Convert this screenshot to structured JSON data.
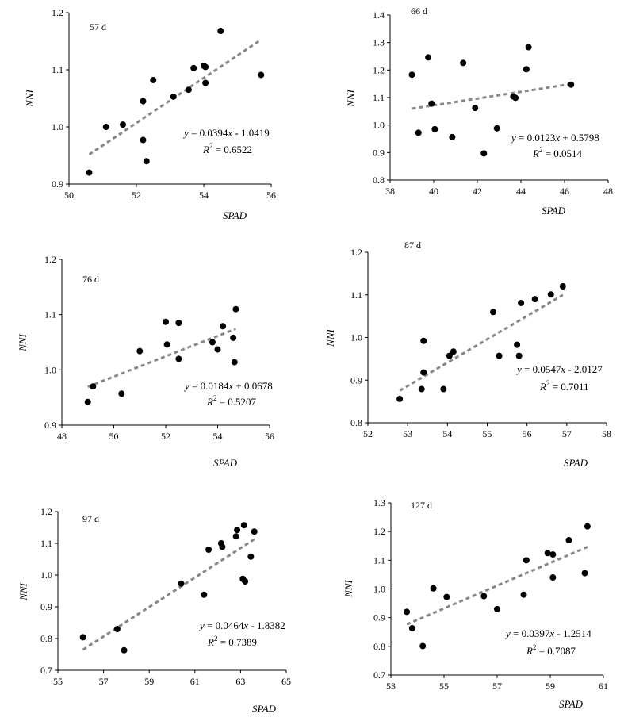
{
  "chart_data": [
    {
      "type": "scatter",
      "title": "57 d",
      "xlabel": "SPAD",
      "ylabel": "NNI",
      "xlim": [
        50,
        56
      ],
      "ylim": [
        0.9,
        1.2
      ],
      "xticks": [
        "50",
        "52",
        "54",
        "56"
      ],
      "yticks": [
        "0.9",
        "1.0",
        "1.1",
        "1.2"
      ],
      "points": [
        [
          50.6,
          0.92
        ],
        [
          51.1,
          1.0
        ],
        [
          51.6,
          1.004
        ],
        [
          52.2,
          0.977
        ],
        [
          52.2,
          1.045
        ],
        [
          52.3,
          0.94
        ],
        [
          52.5,
          1.082
        ],
        [
          53.1,
          1.053
        ],
        [
          53.55,
          1.065
        ],
        [
          53.7,
          1.103
        ],
        [
          54.0,
          1.107
        ],
        [
          54.05,
          1.105
        ],
        [
          54.05,
          1.077
        ],
        [
          54.5,
          1.168
        ],
        [
          55.7,
          1.091
        ]
      ],
      "trendline": {
        "style": "dashed",
        "slope": 0.0394,
        "intercept": -1.0419,
        "x_range": [
          50.6,
          55.7
        ]
      },
      "equation": "y = 0.0394x - 1.0419",
      "r2": "R² = 0.6522"
    },
    {
      "type": "scatter",
      "title": "66 d",
      "xlabel": "SPAD",
      "ylabel": "NNI",
      "xlim": [
        38,
        48
      ],
      "ylim": [
        0.8,
        1.4
      ],
      "xticks": [
        "38",
        "40",
        "42",
        "44",
        "46",
        "48"
      ],
      "yticks": [
        "0.8",
        "0.9",
        "1.0",
        "1.1",
        "1.2",
        "1.3",
        "1.4"
      ],
      "points": [
        [
          39.0,
          1.183
        ],
        [
          39.3,
          0.972
        ],
        [
          39.75,
          1.246
        ],
        [
          39.9,
          1.078
        ],
        [
          40.05,
          0.985
        ],
        [
          40.85,
          0.956
        ],
        [
          41.35,
          1.226
        ],
        [
          41.9,
          1.062
        ],
        [
          42.3,
          0.897
        ],
        [
          42.9,
          0.988
        ],
        [
          43.65,
          1.104
        ],
        [
          43.75,
          1.099
        ],
        [
          44.25,
          1.203
        ],
        [
          44.35,
          1.283
        ],
        [
          46.3,
          1.147
        ]
      ],
      "trendline": {
        "style": "dashed",
        "slope": 0.0123,
        "intercept": 0.5798,
        "x_range": [
          39.0,
          46.3
        ]
      },
      "equation": "y = 0.0123x + 0.5798",
      "r2": "R² = 0.0514"
    },
    {
      "type": "scatter",
      "title": "76 d",
      "xlabel": "SPAD",
      "ylabel": "NNI",
      "xlim": [
        48,
        56
      ],
      "ylim": [
        0.9,
        1.2
      ],
      "xticks": [
        "48",
        "50",
        "52",
        "54",
        "56"
      ],
      "yticks": [
        "0.9",
        "1.0",
        "1.1",
        "1.2"
      ],
      "points": [
        [
          49.0,
          0.942
        ],
        [
          49.2,
          0.97
        ],
        [
          50.3,
          0.957
        ],
        [
          51.0,
          1.034
        ],
        [
          52.0,
          1.087
        ],
        [
          52.05,
          1.046
        ],
        [
          52.5,
          1.085
        ],
        [
          52.5,
          1.02
        ],
        [
          53.8,
          1.05
        ],
        [
          54.0,
          1.037
        ],
        [
          54.2,
          1.079
        ],
        [
          54.6,
          1.058
        ],
        [
          54.65,
          1.014
        ],
        [
          54.7,
          1.11
        ]
      ],
      "trendline": {
        "style": "dashed",
        "slope": 0.0184,
        "intercept": 0.0678,
        "x_range": [
          49.0,
          54.7
        ]
      },
      "equation": "y = 0.0184x + 0.0678",
      "r2": "R² = 0.5207"
    },
    {
      "type": "scatter",
      "title": "87 d",
      "xlabel": "SPAD",
      "ylabel": "NNI",
      "xlim": [
        52,
        58
      ],
      "ylim": [
        0.8,
        1.2
      ],
      "xticks": [
        "52",
        "53",
        "54",
        "55",
        "56",
        "57",
        "58"
      ],
      "yticks": [
        "0.8",
        "0.9",
        "1.0",
        "1.1",
        "1.2"
      ],
      "points": [
        [
          52.8,
          0.856
        ],
        [
          53.35,
          0.879
        ],
        [
          53.4,
          0.918
        ],
        [
          53.4,
          0.992
        ],
        [
          53.9,
          0.879
        ],
        [
          54.05,
          0.957
        ],
        [
          54.15,
          0.967
        ],
        [
          55.15,
          1.06
        ],
        [
          55.3,
          0.957
        ],
        [
          55.75,
          0.983
        ],
        [
          55.8,
          0.957
        ],
        [
          55.85,
          1.081
        ],
        [
          56.2,
          1.09
        ],
        [
          56.6,
          1.101
        ],
        [
          56.9,
          1.12
        ]
      ],
      "trendline": {
        "style": "dashed",
        "slope": 0.0547,
        "intercept": -2.0127,
        "x_range": [
          52.8,
          56.9
        ]
      },
      "equation": "y = 0.0547x - 2.0127",
      "r2": "R² = 0.7011"
    },
    {
      "type": "scatter",
      "title": "97 d",
      "xlabel": "SPAD",
      "ylabel": "NNI",
      "xlim": [
        55,
        65
      ],
      "ylim": [
        0.7,
        1.2
      ],
      "xticks": [
        "55",
        "57",
        "59",
        "61",
        "63",
        "65"
      ],
      "yticks": [
        "0.7",
        "0.8",
        "0.9",
        "1.0",
        "1.1",
        "1.2"
      ],
      "points": [
        [
          56.1,
          0.804
        ],
        [
          57.6,
          0.83
        ],
        [
          57.9,
          0.763
        ],
        [
          60.4,
          0.973
        ],
        [
          61.4,
          0.938
        ],
        [
          61.6,
          1.08
        ],
        [
          62.15,
          1.1
        ],
        [
          62.2,
          1.089
        ],
        [
          62.8,
          1.122
        ],
        [
          62.85,
          1.142
        ],
        [
          63.1,
          0.988
        ],
        [
          63.2,
          0.98
        ],
        [
          63.15,
          1.157
        ],
        [
          63.45,
          1.058
        ],
        [
          63.6,
          1.137
        ]
      ],
      "trendline": {
        "style": "dashed",
        "slope": 0.0464,
        "intercept": -1.8382,
        "x_range": [
          56.1,
          63.6
        ]
      },
      "equation": "y = 0.0464x - 1.8382",
      "r2": "R² = 0.7389"
    },
    {
      "type": "scatter",
      "title": "127 d",
      "xlabel": "SPAD",
      "ylabel": "NNI",
      "xlim": [
        53,
        61
      ],
      "ylim": [
        0.7,
        1.3
      ],
      "xticks": [
        "53",
        "55",
        "57",
        "59",
        "61"
      ],
      "yticks": [
        "0.7",
        "0.8",
        "0.9",
        "1.0",
        "1.1",
        "1.2",
        "1.3"
      ],
      "points": [
        [
          53.6,
          0.92
        ],
        [
          53.8,
          0.863
        ],
        [
          54.2,
          0.801
        ],
        [
          54.6,
          1.002
        ],
        [
          55.1,
          0.972
        ],
        [
          56.5,
          0.975
        ],
        [
          57.0,
          0.93
        ],
        [
          58.0,
          0.98
        ],
        [
          58.1,
          1.1
        ],
        [
          58.9,
          1.125
        ],
        [
          59.1,
          1.12
        ],
        [
          59.1,
          1.04
        ],
        [
          59.7,
          1.17
        ],
        [
          60.3,
          1.055
        ],
        [
          60.4,
          1.218
        ]
      ],
      "trendline": {
        "style": "dashed",
        "slope": 0.0397,
        "intercept": -1.2514,
        "x_range": [
          53.6,
          60.4
        ]
      },
      "equation": "y = 0.0397x - 1.2514",
      "r2": "R² = 0.7087"
    }
  ]
}
